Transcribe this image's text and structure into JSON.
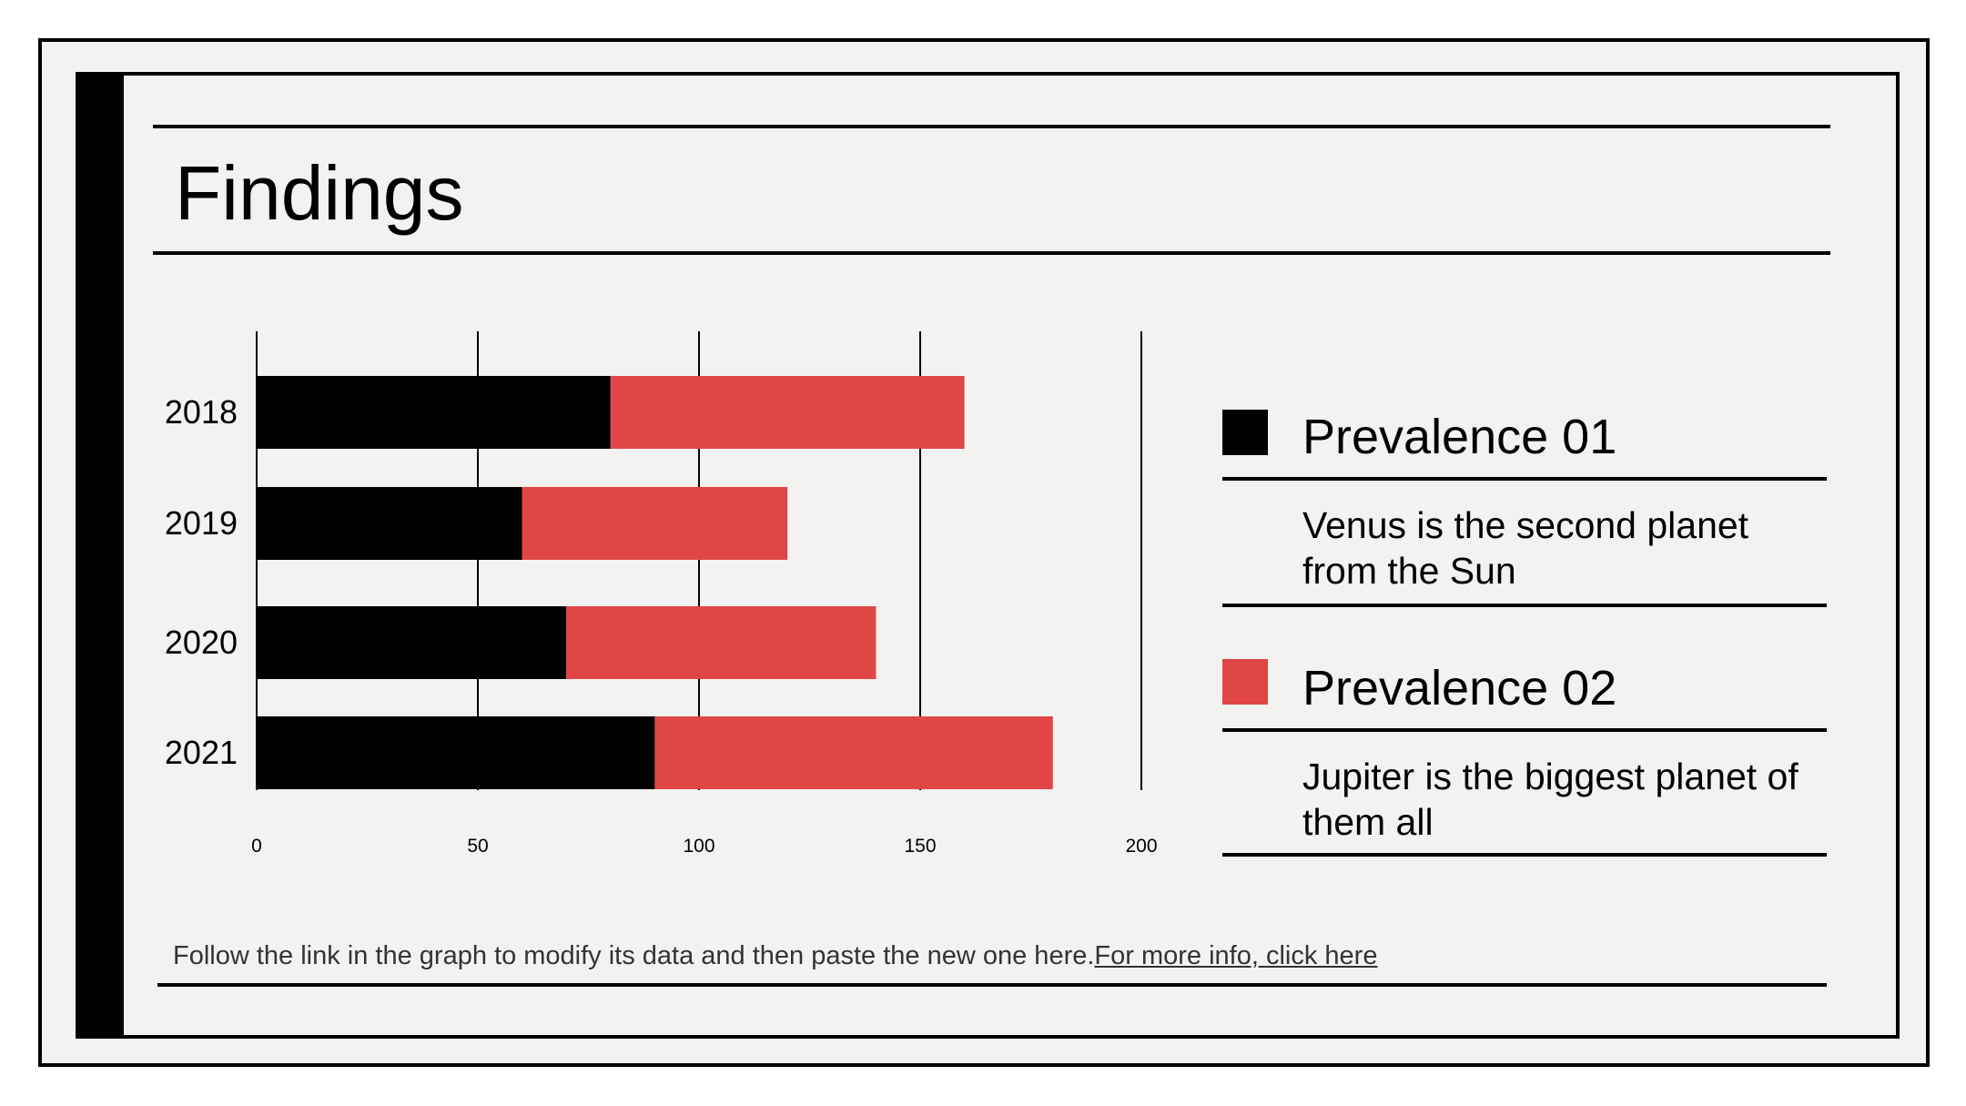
{
  "slide": {
    "title": "Findings",
    "footer": {
      "text": "Follow the link in the graph to modify its data and then paste the new one here.",
      "link_label": "For more info, click here"
    }
  },
  "legend": [
    {
      "title": "Prevalence 01",
      "description": "Venus is the second planet from the Sun",
      "color": "#000000"
    },
    {
      "title": "Prevalence 02",
      "description": "Jupiter is the biggest planet of them all",
      "color": "#e04646"
    }
  ],
  "chart_data": {
    "type": "bar",
    "orientation": "horizontal",
    "stacked": true,
    "categories": [
      "2018",
      "2019",
      "2020",
      "2021"
    ],
    "series": [
      {
        "name": "Prevalence 01",
        "values": [
          80,
          60,
          70,
          90
        ],
        "color": "#000000"
      },
      {
        "name": "Prevalence 02",
        "values": [
          80,
          60,
          70,
          90
        ],
        "color": "#e04646"
      }
    ],
    "xlim": [
      0,
      200
    ],
    "xticks": [
      0,
      50,
      100,
      150,
      200
    ],
    "grid": true,
    "title": "",
    "xlabel": "",
    "ylabel": ""
  }
}
